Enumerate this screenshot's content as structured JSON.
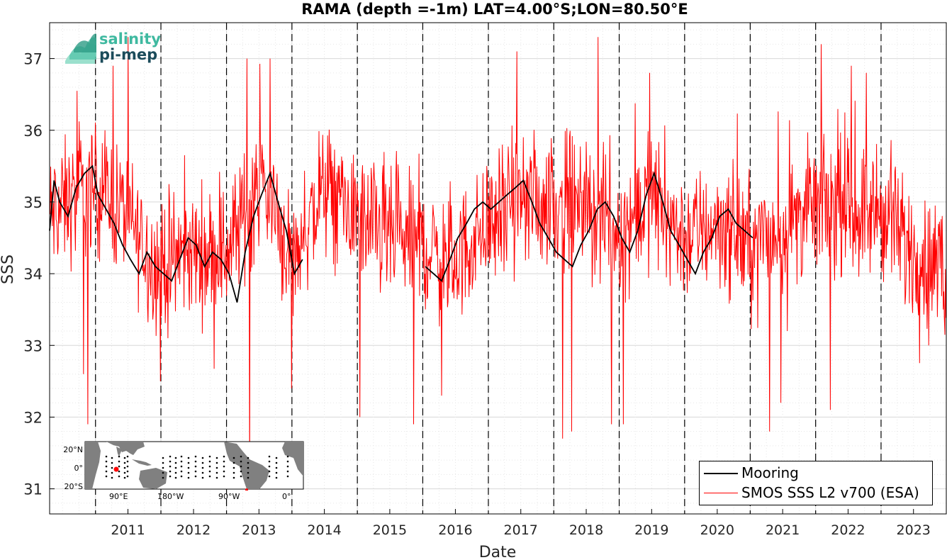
{
  "chart_data": {
    "type": "line",
    "title": "RAMA (depth =-1m) LAT=4.00°S;LON=80.50°E",
    "xlabel": "Date",
    "ylabel": "SSS",
    "xlim": [
      "2010-04-20",
      "2023-12-31"
    ],
    "ylim": [
      30.65,
      37.5
    ],
    "x_ticks": [
      "2011",
      "2012",
      "2013",
      "2014",
      "2015",
      "2016",
      "2017",
      "2018",
      "2019",
      "2020",
      "2021",
      "2022",
      "2023"
    ],
    "y_ticks": [
      31,
      32,
      33,
      34,
      35,
      36,
      37
    ],
    "year_boundaries": [
      "2011-01-01",
      "2012-01-01",
      "2013-01-01",
      "2014-01-01",
      "2015-01-01",
      "2016-01-01",
      "2017-01-01",
      "2018-01-01",
      "2019-01-01",
      "2020-01-01",
      "2021-01-01",
      "2022-01-01",
      "2023-01-01"
    ],
    "grid": "minor dotted",
    "legend_position": "bottom-right",
    "series": [
      {
        "name": "Mooring",
        "color": "#000000",
        "x": [
          "2010-04-20",
          "2010-05-15",
          "2010-06-15",
          "2010-08-01",
          "2010-09-15",
          "2010-11-01",
          "2010-12-15",
          "2011-01-15",
          "2011-03-01",
          "2011-04-15",
          "2011-06-01",
          "2011-07-15",
          "2011-09-01",
          "2011-10-15",
          "2011-12-01",
          "2012-01-15",
          "2012-03-01",
          "2012-04-15",
          "2012-06-01",
          "2012-07-15",
          "2012-09-01",
          "2012-10-15",
          "2012-12-01",
          "2013-01-15",
          "2013-03-01",
          "2013-04-15",
          "2013-06-01",
          "2013-07-15",
          "2013-09-01",
          "2013-10-15",
          "2013-12-01",
          "2014-01-15",
          "2014-03-01",
          "2016-01-15",
          "2016-03-01",
          "2016-04-15",
          "2016-06-01",
          "2016-07-15",
          "2016-09-01",
          "2016-10-15",
          "2016-12-01",
          "2017-01-15",
          "2017-03-01",
          "2017-04-15",
          "2017-06-01",
          "2017-07-15",
          "2017-09-01",
          "2017-10-15",
          "2017-12-01",
          "2018-01-15",
          "2018-03-01",
          "2018-04-15",
          "2018-06-01",
          "2018-07-15",
          "2018-09-01",
          "2018-10-15",
          "2018-12-01",
          "2019-01-15",
          "2019-03-01",
          "2019-04-15",
          "2019-06-01",
          "2019-07-15",
          "2019-09-01",
          "2019-10-15",
          "2019-12-01",
          "2020-01-15",
          "2020-03-01",
          "2020-04-15",
          "2020-06-01",
          "2020-07-15",
          "2020-09-01",
          "2020-10-15",
          "2020-12-01",
          "2021-01-15"
        ],
        "y": [
          34.6,
          35.3,
          35.0,
          34.8,
          35.2,
          35.4,
          35.5,
          35.1,
          34.9,
          34.7,
          34.4,
          34.2,
          34.0,
          34.3,
          34.1,
          34.0,
          33.9,
          34.2,
          34.5,
          34.4,
          34.1,
          34.3,
          34.2,
          34.0,
          33.6,
          34.3,
          34.8,
          35.1,
          35.4,
          35.0,
          34.6,
          34.0,
          34.2,
          34.1,
          34.0,
          33.9,
          34.2,
          34.5,
          34.7,
          34.9,
          35.0,
          34.9,
          35.0,
          35.1,
          35.2,
          35.3,
          35.0,
          34.7,
          34.5,
          34.3,
          34.2,
          34.1,
          34.4,
          34.6,
          34.9,
          35.0,
          34.8,
          34.5,
          34.3,
          34.6,
          35.1,
          35.4,
          35.0,
          34.6,
          34.4,
          34.2,
          34.0,
          34.3,
          34.5,
          34.8,
          34.9,
          34.7,
          34.6,
          34.5
        ]
      },
      {
        "name": "SMOS SSS L2 v700 (ESA)",
        "color": "#ff0000",
        "x_start": "2010-04-20",
        "x_end": "2023-12-31",
        "interval_days": 3,
        "seasonal_anchors": {
          "x": [
            "2010-04-20",
            "2010-10-01",
            "2011-01-15",
            "2011-06-01",
            "2011-12-01",
            "2012-06-01",
            "2013-01-01",
            "2013-07-15",
            "2014-01-01",
            "2014-07-01",
            "2015-01-01",
            "2015-07-01",
            "2016-01-01",
            "2016-06-01",
            "2017-01-01",
            "2017-07-01",
            "2018-01-01",
            "2018-07-01",
            "2019-01-01",
            "2019-07-01",
            "2020-01-01",
            "2020-07-01",
            "2021-01-01",
            "2021-07-01",
            "2022-01-01",
            "2022-07-01",
            "2023-01-01",
            "2023-07-01",
            "2023-12-31"
          ],
          "y": [
            34.8,
            35.1,
            35.2,
            34.9,
            34.1,
            34.3,
            34.3,
            35.3,
            34.2,
            35.2,
            34.8,
            34.5,
            34.4,
            34.1,
            34.7,
            35.0,
            35.0,
            34.9,
            34.6,
            35.1,
            34.5,
            34.7,
            34.4,
            34.6,
            35.0,
            34.9,
            34.8,
            34.3,
            34.0
          ]
        },
        "spread": 0.55,
        "min": 31.0,
        "max": 37.3,
        "notable_spikes": [
          {
            "x": "2010-09-20",
            "y": 36.55
          },
          {
            "x": "2010-10-25",
            "y": 32.6
          },
          {
            "x": "2010-11-20",
            "y": 31.9
          },
          {
            "x": "2011-04-10",
            "y": 36.9
          },
          {
            "x": "2011-12-28",
            "y": 32.5
          },
          {
            "x": "2012-02-10",
            "y": 33.1
          },
          {
            "x": "2013-04-25",
            "y": 37.0
          },
          {
            "x": "2013-05-10",
            "y": 31.0
          },
          {
            "x": "2013-09-01",
            "y": 37.0
          },
          {
            "x": "2013-12-31",
            "y": 32.4
          },
          {
            "x": "2015-01-15",
            "y": 32.0
          },
          {
            "x": "2015-11-10",
            "y": 31.9
          },
          {
            "x": "2016-04-15",
            "y": 32.3
          },
          {
            "x": "2017-06-10",
            "y": 37.1
          },
          {
            "x": "2018-02-20",
            "y": 31.7
          },
          {
            "x": "2018-04-10",
            "y": 31.8
          },
          {
            "x": "2018-09-05",
            "y": 37.3
          },
          {
            "x": "2018-11-20",
            "y": 31.9
          },
          {
            "x": "2019-01-25",
            "y": 31.9
          },
          {
            "x": "2019-06-20",
            "y": 36.8
          },
          {
            "x": "2021-06-20",
            "y": 32.2
          },
          {
            "x": "2021-04-20",
            "y": 31.8
          },
          {
            "x": "2022-02-01",
            "y": 37.2
          },
          {
            "x": "2022-03-25",
            "y": 32.1
          },
          {
            "x": "2022-07-20",
            "y": 36.9
          },
          {
            "x": "2023-09-25",
            "y": 33.0
          }
        ]
      }
    ]
  },
  "logo": {
    "line1": "salinity",
    "line2": "pi-mep",
    "color1": "#3fb9a0",
    "color2": "#1b4b5a"
  },
  "legend": {
    "entries": [
      {
        "label": "Mooring",
        "color": "#000000"
      },
      {
        "label": "SMOS SSS L2 v700 (ESA)",
        "color": "#ff0000"
      }
    ]
  },
  "inset_map": {
    "lat_labels": [
      "20°N",
      "0°",
      "20°S"
    ],
    "lon_labels": [
      "90°E",
      "180°W",
      "90°W",
      "0°"
    ],
    "marker_color": "#ff0000",
    "land_color": "#808080"
  }
}
